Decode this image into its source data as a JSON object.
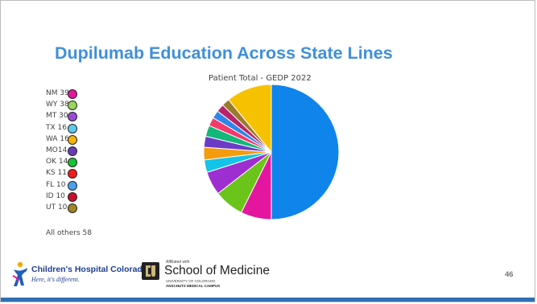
{
  "slide": {
    "title": "Dupilumab Education Across State Lines",
    "page_number": "46"
  },
  "legend": {
    "items": [
      {
        "label": "NM 39",
        "color": "#e4169f"
      },
      {
        "label": "WY 38",
        "color": "#9bd65a"
      },
      {
        "label": "MT 30",
        "color": "#9d4bd6"
      },
      {
        "label": "TX 16",
        "color": "#5ecbf2"
      },
      {
        "label": "WA 16",
        "color": "#f4b400"
      },
      {
        "label": "MO14",
        "color": "#6a3bb8"
      },
      {
        "label": "OK 14",
        "color": "#13c232"
      },
      {
        "label": "KS 11",
        "color": "#f21b1b"
      },
      {
        "label": "FL 10",
        "color": "#4a9ff0"
      },
      {
        "label": "ID 10",
        "color": "#c8102e"
      },
      {
        "label": "UT 10",
        "color": "#a08428"
      }
    ],
    "others_label": "All others 58"
  },
  "chart_data": {
    "type": "pie",
    "title": "Patient Total - GEDP 2022",
    "slices": [
      {
        "label": "",
        "value": 266,
        "color": "#0f84ea"
      },
      {
        "label": "NM 39",
        "value": 39,
        "color": "#e4169f"
      },
      {
        "label": "WY 38",
        "value": 38,
        "color": "#6bc41a"
      },
      {
        "label": "MT 30",
        "value": 30,
        "color": "#9d2fd1"
      },
      {
        "label": "TX 16",
        "value": 16,
        "color": "#14c3e8"
      },
      {
        "label": "WA 16",
        "value": 16,
        "color": "#f29c0e"
      },
      {
        "label": "MO14",
        "value": 14,
        "color": "#6c3bc6"
      },
      {
        "label": "OK 14",
        "value": 14,
        "color": "#13b77a"
      },
      {
        "label": "KS 11",
        "value": 11,
        "color": "#f23a6b"
      },
      {
        "label": "FL 10",
        "value": 10,
        "color": "#2f86e8"
      },
      {
        "label": "ID 10",
        "value": 10,
        "color": "#b8246a"
      },
      {
        "label": "UT 10",
        "value": 10,
        "color": "#9a7a2c"
      },
      {
        "label": "All others 58",
        "value": 58,
        "color": "#f6c200"
      }
    ],
    "start_angle_deg": 0,
    "direction": "clockwise"
  },
  "footer": {
    "childrens_name": "Children's Hospital Colorado",
    "childrens_tagline": "Here, it's different.",
    "som_affiliation": "Affiliated with",
    "som_name": "School of Medicine",
    "som_university": "UNIVERSITY OF COLORADO",
    "som_campus": "ANSCHUTZ MEDICAL CAMPUS"
  },
  "colors": {
    "title": "#3f8fdc",
    "footer_bar": "#2f6fb3"
  }
}
